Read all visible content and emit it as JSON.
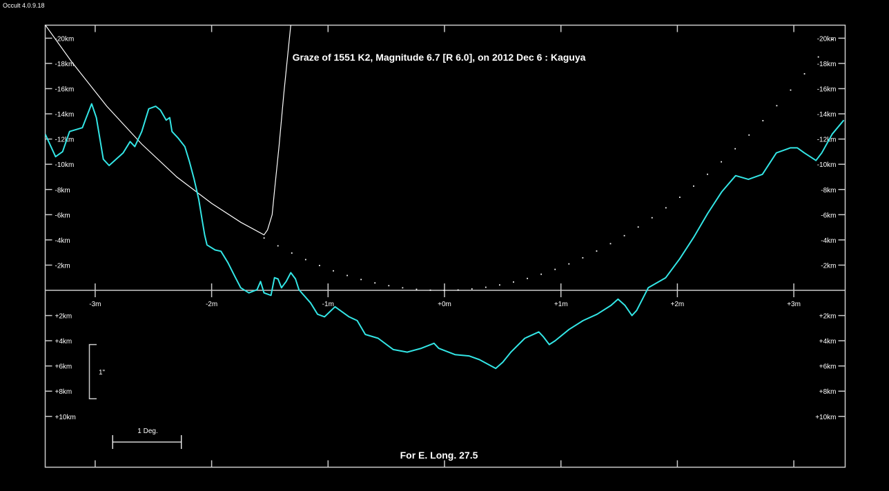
{
  "app_version": "Occult 4.0.9.18",
  "chart_data": {
    "type": "line",
    "title": "Graze of  1551 K2,  Magnitude 6.7 [R 6.0],  on 2012 Dec  6  :  Kaguya",
    "footer": "For E. Long. 27.5",
    "xlabel": "minutes",
    "ylabel": "km",
    "xlim": [
      -3.43,
      3.44
    ],
    "ylim": [
      -21.06,
      14.0
    ],
    "x_ticks": [
      -3,
      -2,
      -1,
      0,
      1,
      2,
      3
    ],
    "x_tick_labels": [
      "-3m",
      "-2m",
      "-1m",
      "+0m",
      "+1m",
      "+2m",
      "+3m"
    ],
    "y_ticks": [
      -20,
      -18,
      -16,
      -14,
      -12,
      -10,
      -8,
      -6,
      -4,
      -2,
      2,
      4,
      6,
      8,
      10
    ],
    "y_tick_labels": [
      "-20km",
      "-18km",
      "-16km",
      "-14km",
      "-12km",
      "-10km",
      "-8km",
      "-6km",
      "-4km",
      "-2km",
      "+2km",
      "+4km",
      "+6km",
      "+8km",
      "+10km"
    ],
    "scale_arcsec_label": "1\"",
    "scale_arcsec_km": [
      4.3,
      8.6
    ],
    "scale_deg_label": "1 Deg.",
    "scale_deg_min": [
      -2.85,
      -2.26
    ],
    "colors": {
      "profile": "#33e6e6",
      "path": "#ffffff",
      "axes": "#cccccc"
    },
    "series": [
      {
        "name": "lunar limb profile",
        "points": [
          [
            -3.43,
            -12.4
          ],
          [
            -3.34,
            -10.6
          ],
          [
            -3.28,
            -11.0
          ],
          [
            -3.22,
            -12.6
          ],
          [
            -3.11,
            -12.9
          ],
          [
            -3.03,
            -14.8
          ],
          [
            -2.99,
            -13.7
          ],
          [
            -2.93,
            -10.4
          ],
          [
            -2.88,
            -9.9
          ],
          [
            -2.76,
            -10.9
          ],
          [
            -2.7,
            -11.8
          ],
          [
            -2.66,
            -11.4
          ],
          [
            -2.6,
            -12.6
          ],
          [
            -2.54,
            -14.4
          ],
          [
            -2.48,
            -14.6
          ],
          [
            -2.44,
            -14.3
          ],
          [
            -2.39,
            -13.5
          ],
          [
            -2.36,
            -13.7
          ],
          [
            -2.34,
            -12.6
          ],
          [
            -2.29,
            -12.1
          ],
          [
            -2.23,
            -11.4
          ],
          [
            -2.19,
            -10.2
          ],
          [
            -2.15,
            -8.8
          ],
          [
            -2.11,
            -7.2
          ],
          [
            -2.08,
            -5.5
          ],
          [
            -2.06,
            -4.4
          ],
          [
            -2.04,
            -3.6
          ],
          [
            -1.97,
            -3.2
          ],
          [
            -1.92,
            -3.1
          ],
          [
            -1.86,
            -2.2
          ],
          [
            -1.8,
            -1.1
          ],
          [
            -1.75,
            -0.2
          ],
          [
            -1.68,
            0.2
          ],
          [
            -1.61,
            -0.05
          ],
          [
            -1.58,
            -0.7
          ],
          [
            -1.55,
            0.2
          ],
          [
            -1.49,
            0.4
          ],
          [
            -1.46,
            -1.0
          ],
          [
            -1.43,
            -0.9
          ],
          [
            -1.4,
            -0.2
          ],
          [
            -1.36,
            -0.7
          ],
          [
            -1.32,
            -1.4
          ],
          [
            -1.28,
            -0.9
          ],
          [
            -1.25,
            -0.05
          ],
          [
            -1.15,
            1.0
          ],
          [
            -1.09,
            1.9
          ],
          [
            -1.03,
            2.1
          ],
          [
            -0.94,
            1.3
          ],
          [
            -0.82,
            2.1
          ],
          [
            -0.75,
            2.4
          ],
          [
            -0.68,
            3.5
          ],
          [
            -0.57,
            3.8
          ],
          [
            -0.44,
            4.7
          ],
          [
            -0.32,
            4.9
          ],
          [
            -0.2,
            4.6
          ],
          [
            -0.09,
            4.2
          ],
          [
            -0.05,
            4.6
          ],
          [
            0.09,
            5.1
          ],
          [
            0.21,
            5.2
          ],
          [
            0.3,
            5.5
          ],
          [
            0.44,
            6.2
          ],
          [
            0.5,
            5.7
          ],
          [
            0.57,
            4.9
          ],
          [
            0.69,
            3.8
          ],
          [
            0.81,
            3.3
          ],
          [
            0.85,
            3.7
          ],
          [
            0.9,
            4.3
          ],
          [
            0.95,
            4.0
          ],
          [
            1.07,
            3.1
          ],
          [
            1.19,
            2.4
          ],
          [
            1.31,
            1.9
          ],
          [
            1.43,
            1.2
          ],
          [
            1.49,
            0.7
          ],
          [
            1.55,
            1.2
          ],
          [
            1.61,
            2.0
          ],
          [
            1.65,
            1.6
          ],
          [
            1.75,
            -0.2
          ],
          [
            1.9,
            -1.0
          ],
          [
            2.02,
            -2.5
          ],
          [
            2.14,
            -4.2
          ],
          [
            2.26,
            -6.1
          ],
          [
            2.38,
            -7.8
          ],
          [
            2.5,
            -9.1
          ],
          [
            2.61,
            -8.8
          ],
          [
            2.73,
            -9.2
          ],
          [
            2.85,
            -10.9
          ],
          [
            2.97,
            -11.3
          ],
          [
            3.03,
            -11.3
          ],
          [
            3.09,
            -10.9
          ],
          [
            3.19,
            -10.3
          ],
          [
            3.24,
            -10.9
          ],
          [
            3.33,
            -12.4
          ],
          [
            3.43,
            -13.5
          ]
        ]
      },
      {
        "name": "observer path",
        "points": [
          [
            -3.43,
            -21.06
          ],
          [
            -3.2,
            -18.1
          ],
          [
            -2.9,
            -14.6
          ],
          [
            -2.6,
            -11.6
          ],
          [
            -2.3,
            -9.0
          ],
          [
            -2.0,
            -6.9
          ],
          [
            -1.75,
            -5.4
          ],
          [
            -1.55,
            -4.4
          ],
          [
            -1.52,
            -4.8
          ],
          [
            -1.48,
            -6.0
          ],
          [
            -1.46,
            -7.9
          ],
          [
            -1.42,
            -11.5
          ],
          [
            -1.38,
            -15.6
          ],
          [
            -1.32,
            -21.06
          ]
        ]
      },
      {
        "name": "mean limb (dotted)",
        "parabola": {
          "from": -1.55,
          "to": 3.33,
          "step": 0.119,
          "center": -0.02,
          "coef": -1.775
        }
      }
    ]
  }
}
